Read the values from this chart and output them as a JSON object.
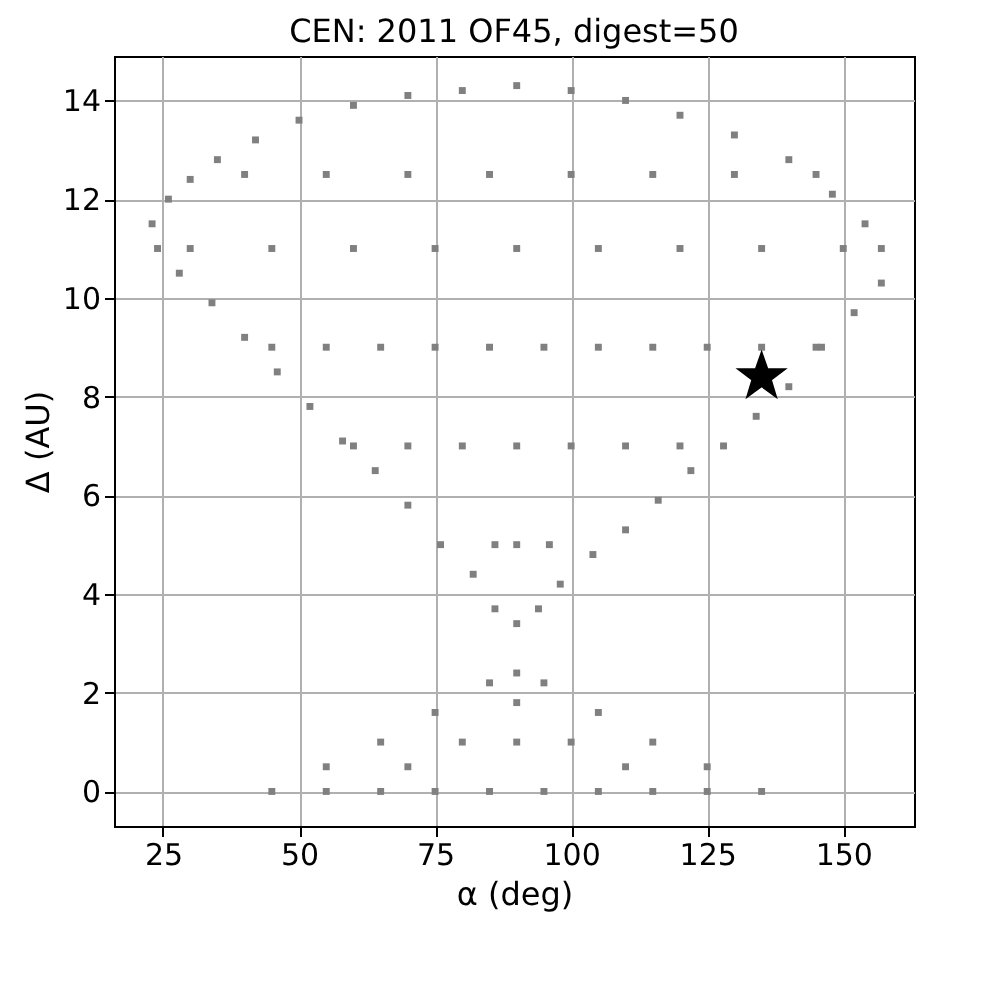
{
  "chart_data": {
    "type": "scatter",
    "title": "CEN: 2011 OF45, digest=50",
    "xlabel": "α (deg)",
    "ylabel": "Δ (AU)",
    "xlim": [
      16,
      163
    ],
    "ylim": [
      -0.7,
      14.9
    ],
    "xticks": [
      25,
      50,
      75,
      100,
      125,
      150
    ],
    "yticks": [
      0,
      2,
      4,
      6,
      8,
      10,
      12,
      14
    ],
    "grid": true,
    "series": [
      {
        "color": "#808080",
        "marker": "square",
        "x": [
          90,
          86,
          82,
          76,
          70,
          64,
          58,
          52,
          46,
          40,
          34,
          28,
          24,
          23,
          26,
          30,
          35,
          42,
          50,
          60,
          70,
          80,
          90,
          100,
          110,
          120,
          130,
          140,
          148,
          154,
          157,
          157,
          152,
          146,
          140,
          134,
          128,
          122,
          116,
          110,
          104,
          98,
          94,
          86,
          90,
          96,
          60,
          70,
          80,
          90,
          100,
          110,
          120,
          45,
          55,
          65,
          75,
          85,
          95,
          105,
          115,
          125,
          135,
          145,
          30,
          45,
          60,
          75,
          90,
          105,
          120,
          135,
          150,
          40,
          55,
          70,
          85,
          100,
          115,
          130,
          145,
          45,
          55,
          65,
          75,
          85,
          95,
          105,
          115,
          125,
          135,
          55,
          65,
          75,
          85,
          90,
          95,
          105,
          115,
          125,
          70,
          80,
          90,
          100,
          110,
          90
        ],
        "values": [
          3.4,
          3.7,
          4.4,
          5.0,
          5.8,
          6.5,
          7.1,
          7.8,
          8.5,
          9.2,
          9.9,
          10.5,
          11.0,
          11.5,
          12.0,
          12.4,
          12.8,
          13.2,
          13.6,
          13.9,
          14.1,
          14.2,
          14.3,
          14.2,
          14.0,
          13.7,
          13.3,
          12.8,
          12.1,
          11.5,
          11.0,
          10.3,
          9.7,
          9.0,
          8.2,
          7.6,
          7.0,
          6.5,
          5.9,
          5.3,
          4.8,
          4.2,
          3.7,
          5,
          5,
          5,
          7,
          7,
          7,
          7,
          7,
          7,
          7,
          9,
          9,
          9,
          9,
          9,
          9,
          9,
          9,
          9,
          9,
          9,
          11,
          11,
          11,
          11,
          11,
          11,
          11,
          11,
          11,
          12.5,
          12.5,
          12.5,
          12.5,
          12.5,
          12.5,
          12.5,
          12.5,
          0,
          0,
          0,
          0,
          0,
          0,
          0,
          0,
          0,
          0,
          0.5,
          1.0,
          1.6,
          2.2,
          2.4,
          2.2,
          1.6,
          1.0,
          0.5,
          0.5,
          1,
          1,
          1,
          0.5,
          1.8
        ]
      },
      {
        "color": "#000000",
        "marker": "star",
        "x": [
          135
        ],
        "values": [
          8.4
        ]
      }
    ]
  }
}
